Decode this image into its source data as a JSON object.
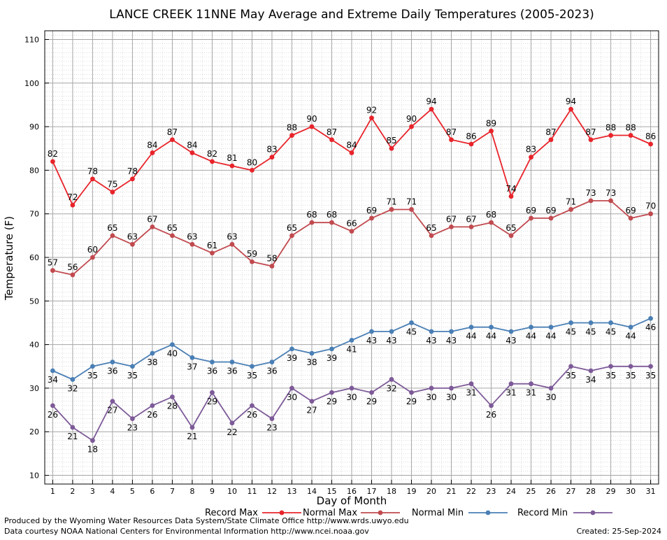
{
  "chart_data": {
    "type": "line",
    "title": "LANCE CREEK 11NNE May Average and Extreme Daily Temperatures (2005-2023)",
    "xlabel": "Day of Month",
    "ylabel": "Temperature (F)",
    "x": [
      1,
      2,
      3,
      4,
      5,
      6,
      7,
      8,
      9,
      10,
      11,
      12,
      13,
      14,
      15,
      16,
      17,
      18,
      19,
      20,
      21,
      22,
      23,
      24,
      25,
      26,
      27,
      28,
      29,
      30,
      31
    ],
    "xlim": [
      0.6,
      31.4
    ],
    "ylim": [
      8,
      112
    ],
    "yticks": [
      10,
      20,
      30,
      40,
      50,
      60,
      70,
      80,
      90,
      100,
      110
    ],
    "grid": true,
    "legend_position": "bottom",
    "series": [
      {
        "name": "Record Max",
        "color": "#e8242b",
        "label_side": "above",
        "values": [
          82,
          72,
          78,
          75,
          78,
          84,
          87,
          84,
          82,
          81,
          80,
          83,
          88,
          90,
          87,
          84,
          92,
          85,
          90,
          94,
          87,
          86,
          89,
          74,
          83,
          87,
          94,
          87,
          88,
          88,
          86
        ]
      },
      {
        "name": "Normal Max",
        "color": "#c14a4f",
        "label_side": "above",
        "values": [
          57,
          56,
          60,
          65,
          63,
          67,
          65,
          63,
          61,
          63,
          59,
          58,
          65,
          68,
          68,
          66,
          69,
          71,
          71,
          65,
          67,
          67,
          68,
          65,
          69,
          69,
          71,
          73,
          73,
          69,
          70
        ]
      },
      {
        "name": "Normal Min",
        "color": "#4a7fb5",
        "label_side": "below",
        "values": [
          34,
          32,
          35,
          36,
          35,
          38,
          40,
          37,
          36,
          36,
          35,
          36,
          39,
          38,
          39,
          41,
          43,
          43,
          45,
          43,
          43,
          44,
          44,
          43,
          44,
          44,
          45,
          45,
          45,
          44,
          46
        ]
      },
      {
        "name": "Record Min",
        "color": "#7d5a98",
        "label_side": "below",
        "values": [
          26,
          21,
          18,
          27,
          23,
          26,
          28,
          21,
          29,
          22,
          26,
          23,
          30,
          27,
          29,
          30,
          29,
          32,
          29,
          30,
          30,
          31,
          26,
          31,
          31,
          30,
          35,
          34,
          35,
          35,
          35
        ]
      }
    ]
  },
  "footer": {
    "produced_by": "Produced by the Wyoming Water Resources Data System/State Climate Office http://www.wrds.uwyo.edu",
    "data_courtesy": "Data courtesy NOAA National Centers for Environmental Information http://www.ncei.noaa.gov",
    "created": "Created:  25-Sep-2024"
  }
}
